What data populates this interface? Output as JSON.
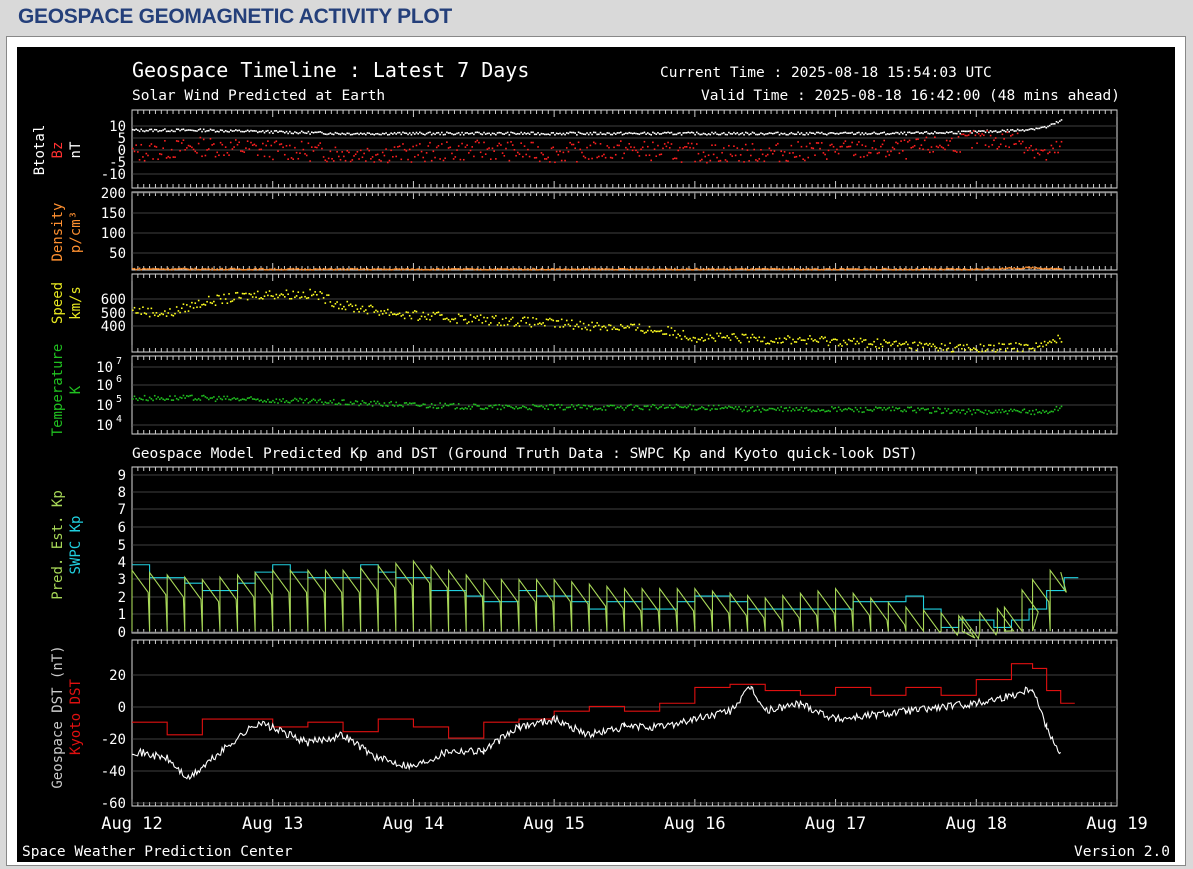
{
  "page": {
    "title": "GEOSPACE GEOMAGNETIC ACTIVITY PLOT"
  },
  "plot": {
    "title": "Geospace Timeline : Latest 7 Days",
    "subtitle": "Solar Wind Predicted at Earth",
    "current_time": "Current Time : 2025-08-18 15:54:03 UTC",
    "valid_time": "Valid Time : 2025-08-18 16:42:00 (48 mins ahead)",
    "model_title": "Geospace Model Predicted Kp and DST (Ground Truth Data : SWPC Kp and Kyoto quick-look DST)",
    "footer_left": "Space Weather Prediction Center",
    "footer_right": "Version 2.0",
    "x_ticks": [
      "Aug 12",
      "Aug 13",
      "Aug 14",
      "Aug 15",
      "Aug 16",
      "Aug 17",
      "Aug 18",
      "Aug 19"
    ],
    "colors": {
      "btotal": "#ffffff",
      "bz": "#ff2020",
      "density": "#ff9030",
      "speed": "#ffff20",
      "temperature": "#20c020",
      "pred_kp": "#a8d858",
      "swpc_kp": "#20d0e0",
      "geospace_dst": "#ffffff",
      "kyoto_dst": "#e01010"
    }
  },
  "chart_data": [
    {
      "type": "scatter",
      "ylabel_parts": [
        "Btotal",
        "Bz",
        "nT"
      ],
      "yticks": [
        "10",
        "5",
        "0",
        "-5",
        "-10"
      ],
      "ylim": [
        -12,
        12
      ],
      "x_range": [
        "2025-08-12",
        "2025-08-19"
      ],
      "series": [
        {
          "name": "Btotal",
          "x_days": [
            0,
            0.5,
            1,
            1.5,
            2,
            2.5,
            3,
            3.5,
            4,
            4.5,
            5,
            5.5,
            6,
            6.3,
            6.5,
            6.6
          ],
          "values": [
            6,
            6,
            5.5,
            5,
            5,
            5,
            5,
            5,
            5,
            5,
            5,
            5,
            5.5,
            6,
            7,
            9
          ]
        },
        {
          "name": "Bz",
          "x_days": [
            0,
            0.5,
            1,
            1.5,
            2,
            2.5,
            3,
            3.5,
            4,
            4.5,
            5,
            5.5,
            6,
            6.3,
            6.5,
            6.6
          ],
          "values": [
            -1,
            1,
            0,
            -1,
            -1,
            0,
            -1,
            0,
            -1,
            -1,
            0,
            0,
            3,
            3,
            -2,
            1
          ]
        }
      ]
    },
    {
      "type": "scatter",
      "ylabel_parts": [
        "Density",
        "p/cm³"
      ],
      "yticks": [
        "200",
        "150",
        "100",
        "50"
      ],
      "ylim": [
        0,
        210
      ],
      "series": [
        {
          "name": "Density",
          "x_days": [
            0,
            1,
            2,
            3,
            4,
            5,
            6,
            6.4,
            6.6
          ],
          "values": [
            5,
            4,
            4,
            4,
            4,
            4,
            4,
            8,
            5
          ]
        }
      ]
    },
    {
      "type": "scatter",
      "ylabel_parts": [
        "Speed",
        "km/s"
      ],
      "yticks": [
        "600",
        "500",
        "400"
      ],
      "ylim": [
        300,
        700
      ],
      "series": [
        {
          "name": "Speed",
          "x_days": [
            0,
            0.25,
            0.5,
            0.9,
            1.3,
            1.5,
            2,
            2.5,
            3,
            3.5,
            3.8,
            4,
            4.5,
            5,
            5.5,
            6,
            6.3,
            6.5,
            6.6
          ],
          "values": [
            520,
            500,
            560,
            600,
            600,
            540,
            490,
            470,
            450,
            430,
            410,
            380,
            370,
            360,
            340,
            320,
            330,
            340,
            380
          ]
        }
      ]
    },
    {
      "type": "scatter",
      "ylabel_parts": [
        "Temperature",
        "K"
      ],
      "yticks": [
        "10^7",
        "10^6",
        "10^5",
        "10^4"
      ],
      "ylim": [
        3.8,
        7.2
      ],
      "log_scale": true,
      "series": [
        {
          "name": "Temperature",
          "x_days": [
            0,
            0.5,
            1,
            1.5,
            2,
            2.5,
            3,
            3.5,
            4,
            4.5,
            5,
            5.5,
            6,
            6.5,
            6.6
          ],
          "values": [
            5.4,
            5.4,
            5.3,
            5.2,
            5.1,
            5.0,
            5.0,
            5.0,
            5.0,
            4.9,
            4.9,
            4.9,
            4.8,
            4.8,
            5.0
          ]
        }
      ]
    },
    {
      "type": "line",
      "ylabel_parts": [
        "Pred. Est. Kp",
        "SWPC Kp"
      ],
      "yticks": [
        "9",
        "8",
        "7",
        "6",
        "5",
        "4",
        "3",
        "2",
        "1",
        "0"
      ],
      "ylim": [
        0,
        9
      ],
      "series": [
        {
          "name": "SWPC Kp",
          "x_days": [
            0,
            0.125,
            0.25,
            0.375,
            0.5,
            0.625,
            0.75,
            0.875,
            1,
            1.125,
            1.25,
            1.375,
            1.5,
            1.625,
            1.75,
            1.875,
            2,
            2.125,
            2.25,
            2.375,
            2.5,
            2.625,
            2.75,
            2.875,
            3,
            3.125,
            3.125,
            3.25,
            3.375,
            3.5,
            3.625,
            3.75,
            3.875,
            4,
            4.125,
            4.25,
            4.375,
            4.5,
            4.625,
            4.75,
            4.875,
            5,
            5.125,
            5.25,
            5.375,
            5.5,
            5.625,
            5.75,
            5.875,
            6,
            6.125,
            6.25,
            6.375,
            6.5,
            6.625
          ],
          "values": [
            3.7,
            3.0,
            3.0,
            2.7,
            2.3,
            2.3,
            2.7,
            3.3,
            3.7,
            3.3,
            3.0,
            3.0,
            3.0,
            3.7,
            3.3,
            3.0,
            3.0,
            2.3,
            2.3,
            2.0,
            1.7,
            1.7,
            2.3,
            2.0,
            2.0,
            2.0,
            1.7,
            1.3,
            1.7,
            1.7,
            1.3,
            1.3,
            1.7,
            2.0,
            2.0,
            1.7,
            1.3,
            1.3,
            1.3,
            1.3,
            1.3,
            1.3,
            1.7,
            1.7,
            1.7,
            2.0,
            1.3,
            0.3,
            0.7,
            0.7,
            0.3,
            0.7,
            1.3,
            2.3,
            3.0
          ]
        },
        {
          "name": "Pred. Est. Kp",
          "x_days": [
            0,
            0.5,
            1,
            1.5,
            2,
            2.5,
            3,
            3.5,
            4,
            4.5,
            5,
            5.5,
            5.9,
            6.2,
            6.4,
            6.6
          ],
          "values": [
            3.0,
            2.5,
            3.0,
            3.0,
            3.5,
            2.5,
            2.5,
            2.0,
            2.0,
            1.5,
            2.0,
            1.0,
            0.5,
            1.0,
            2.5,
            3.3
          ]
        }
      ]
    },
    {
      "type": "line",
      "ylabel_parts": [
        "Geospace DST (nT)",
        "Kyoto DST"
      ],
      "yticks": [
        "20",
        "0",
        "-20",
        "-40",
        "-60"
      ],
      "ylim": [
        -65,
        40
      ],
      "series": [
        {
          "name": "Kyoto DST",
          "x_days": [
            0,
            0.25,
            0.5,
            0.75,
            1,
            1.25,
            1.5,
            1.75,
            2,
            2.25,
            2.5,
            2.75,
            3,
            3.25,
            3.5,
            3.75,
            4,
            4.25,
            4.5,
            4.75,
            5,
            5.25,
            5.5,
            5.75,
            6,
            6.25,
            6.4,
            6.5,
            6.6
          ],
          "values": [
            -12,
            -20,
            -10,
            -10,
            -15,
            -12,
            -18,
            -10,
            -15,
            -22,
            -12,
            -10,
            -5,
            -2,
            -5,
            0,
            10,
            12,
            8,
            5,
            10,
            5,
            10,
            5,
            15,
            25,
            22,
            8,
            0
          ]
        },
        {
          "name": "Geospace DST",
          "x_days": [
            0,
            0.25,
            0.4,
            0.75,
            0.9,
            1.25,
            1.5,
            1.75,
            2,
            2.25,
            2.5,
            2.75,
            3,
            3.25,
            3.5,
            3.75,
            4,
            4.25,
            4.4,
            4.5,
            4.75,
            5,
            5.5,
            6,
            6.25,
            6.4,
            6.5,
            6.6
          ],
          "values": [
            -30,
            -35,
            -48,
            -22,
            -12,
            -25,
            -20,
            -35,
            -40,
            -30,
            -30,
            -15,
            -10,
            -20,
            -15,
            -15,
            -10,
            -5,
            10,
            -5,
            0,
            -10,
            -5,
            0,
            5,
            10,
            -15,
            -32
          ]
        }
      ]
    }
  ]
}
